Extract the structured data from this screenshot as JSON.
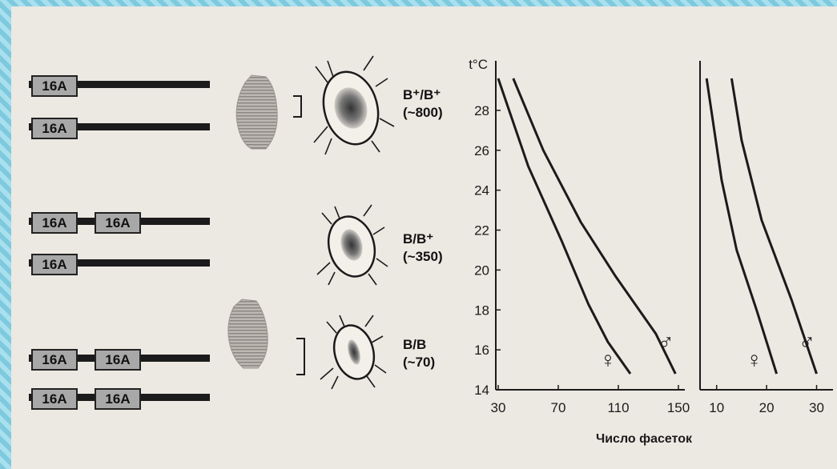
{
  "chromosomes": {
    "locus_label": "16A",
    "genotypes": [
      {
        "label": "B⁺/B⁺",
        "count": "(~800)"
      },
      {
        "label": "B/B⁺",
        "count": "(~350)"
      },
      {
        "label": "B/B",
        "count": "(~70)"
      }
    ]
  },
  "chart_data": [
    {
      "type": "line",
      "ylabel": "t°C",
      "ylim": [
        14,
        30
      ],
      "yticks": [
        14,
        16,
        18,
        20,
        22,
        24,
        26,
        28
      ],
      "xlim": [
        30,
        150
      ],
      "xticks": [
        30,
        70,
        110,
        150
      ],
      "series": [
        {
          "name": "♀",
          "x": [
            30,
            50,
            72,
            90,
            103,
            118
          ],
          "y": [
            29.6,
            25.2,
            21.5,
            18.3,
            16.4,
            14.8
          ]
        },
        {
          "name": "♂",
          "x": [
            40,
            60,
            85,
            108,
            135,
            148
          ],
          "y": [
            29.6,
            26.0,
            22.4,
            19.7,
            16.8,
            14.8
          ]
        }
      ]
    },
    {
      "type": "line",
      "ylim": [
        14,
        30
      ],
      "xlim": [
        7,
        32
      ],
      "xticks": [
        10,
        20,
        30
      ],
      "series": [
        {
          "name": "♀",
          "x": [
            8,
            11,
            14,
            18,
            22
          ],
          "y": [
            29.6,
            24.5,
            21.0,
            18.0,
            14.8
          ]
        },
        {
          "name": "♂",
          "x": [
            13,
            15,
            19,
            25,
            30
          ],
          "y": [
            29.6,
            26.5,
            22.5,
            18.5,
            14.8
          ]
        }
      ]
    }
  ],
  "xaxis_label": "Число фасеток",
  "colors": {
    "ink": "#1b1b1b",
    "paper": "#ece8e2",
    "frame": "#8fd3e6"
  }
}
